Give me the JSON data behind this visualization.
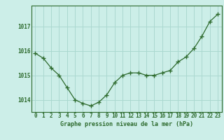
{
  "x": [
    0,
    1,
    2,
    3,
    4,
    5,
    6,
    7,
    8,
    9,
    10,
    11,
    12,
    13,
    14,
    15,
    16,
    17,
    18,
    19,
    20,
    21,
    22,
    23
  ],
  "y": [
    1015.9,
    1015.7,
    1015.3,
    1015.0,
    1014.5,
    1014.0,
    1013.85,
    1013.75,
    1013.9,
    1014.2,
    1014.7,
    1015.0,
    1015.1,
    1015.1,
    1015.0,
    1015.0,
    1015.1,
    1015.2,
    1015.55,
    1015.75,
    1016.1,
    1016.6,
    1017.2,
    1017.5
  ],
  "line_color": "#2d6a2d",
  "marker_color": "#2d6a2d",
  "bg_color": "#cceee8",
  "grid_color": "#aad8d0",
  "label": "Graphe pression niveau de la mer (hPa)",
  "label_color": "#2d6a2d",
  "tick_color": "#2d6a2d",
  "spine_color": "#2d6a2d",
  "ylim_min": 1013.5,
  "ylim_max": 1017.85,
  "yticks": [
    1014,
    1015,
    1016,
    1017
  ],
  "xticks": [
    0,
    1,
    2,
    3,
    4,
    5,
    6,
    7,
    8,
    9,
    10,
    11,
    12,
    13,
    14,
    15,
    16,
    17,
    18,
    19,
    20,
    21,
    22,
    23
  ]
}
